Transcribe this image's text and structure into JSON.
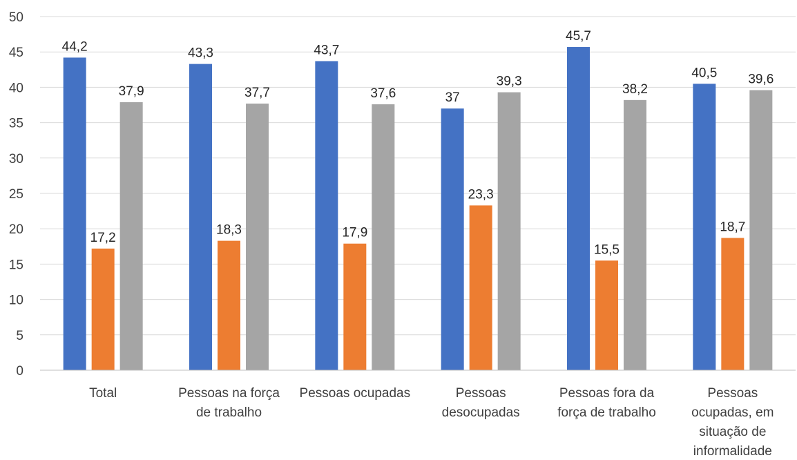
{
  "chart_data": {
    "type": "bar",
    "categories": [
      [
        "Total"
      ],
      [
        "Pessoas na força",
        "de trabalho"
      ],
      [
        "Pessoas ocupadas"
      ],
      [
        "Pessoas",
        "desocupadas"
      ],
      [
        "Pessoas fora da",
        "força de trabalho"
      ],
      [
        "Pessoas",
        "ocupadas, em",
        "situação de",
        "informalidade"
      ]
    ],
    "series": [
      {
        "color": "#4472C4",
        "values": [
          44.2,
          43.3,
          43.7,
          37.0,
          45.7,
          40.5
        ],
        "labels": [
          "44,2",
          "43,3",
          "43,7",
          "37",
          "45,7",
          "40,5"
        ]
      },
      {
        "color": "#ED7D31",
        "values": [
          17.2,
          18.3,
          17.9,
          23.3,
          15.5,
          18.7
        ],
        "labels": [
          "17,2",
          "18,3",
          "17,9",
          "23,3",
          "15,5",
          "18,7"
        ]
      },
      {
        "color": "#A5A5A5",
        "values": [
          37.9,
          37.7,
          37.6,
          39.3,
          38.2,
          39.6
        ],
        "labels": [
          "37,9",
          "37,7",
          "37,6",
          "39,3",
          "38,2",
          "39,6"
        ]
      }
    ],
    "ylim": [
      0,
      50
    ],
    "yticks": [
      "0",
      "5",
      "10",
      "15",
      "20",
      "25",
      "30",
      "35",
      "40",
      "45",
      "50"
    ],
    "grid": true,
    "legend": "none",
    "title": "",
    "xlabel": "",
    "ylabel": ""
  }
}
